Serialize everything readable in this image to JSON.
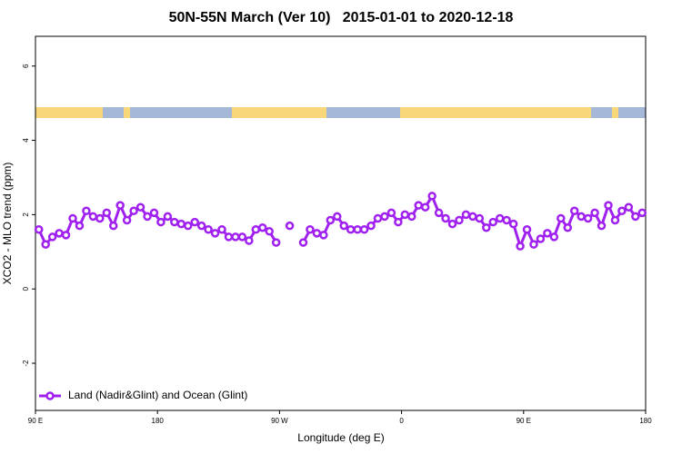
{
  "chart_data": {
    "type": "line",
    "title": "50N-55N March (Ver 10)   2015-01-01 to 2020-12-18",
    "x_label": "Longitude (deg E)",
    "y_label": "XCO2 - MLO trend (ppm)",
    "xlim": [
      90,
      540
    ],
    "ylim": [
      -3.27,
      6.8
    ],
    "xticks": [
      {
        "value": 90,
        "label": "90 E"
      },
      {
        "value": 180,
        "label": "180"
      },
      {
        "value": 270,
        "label": "90 W"
      },
      {
        "value": 360,
        "label": "0"
      },
      {
        "value": 450,
        "label": "90 E"
      },
      {
        "value": 540,
        "label": "180"
      }
    ],
    "yticks": [
      -2,
      0,
      2,
      4,
      6
    ],
    "legend": "bottom-left",
    "x": [
      92.5,
      97.5,
      102.5,
      107.5,
      112.5,
      117.5,
      122.5,
      127.5,
      132.5,
      137.5,
      142.5,
      147.5,
      152.5,
      157.5,
      162.5,
      167.5,
      172.5,
      177.5,
      182.5,
      187.5,
      192.5,
      197.5,
      202.5,
      207.5,
      212.5,
      217.5,
      222.5,
      227.5,
      232.5,
      237.5,
      242.5,
      247.5,
      252.5,
      257.5,
      262.5,
      267.5,
      272.5,
      277.5,
      282.5,
      287.5,
      292.5,
      297.5,
      302.5,
      307.5,
      312.5,
      317.5,
      322.5,
      327.5,
      332.5,
      337.5,
      342.5,
      347.5,
      352.5,
      357.5,
      362.5,
      367.5,
      372.5,
      377.5,
      382.5,
      387.5,
      392.5,
      397.5,
      402.5,
      407.5,
      412.5,
      417.5,
      422.5,
      427.5,
      432.5,
      437.5,
      442.5,
      447.5,
      452.5,
      457.5,
      462.5,
      467.5,
      472.5,
      477.5,
      482.5,
      487.5,
      492.5,
      497.5,
      502.5,
      507.5,
      512.5,
      517.5,
      522.5,
      527.5,
      532.5,
      537.5
    ],
    "series": [
      {
        "name": "Land (Nadir&Glint) and Ocean (Glint)",
        "color": "#a020f0",
        "values": [
          1.6,
          1.2,
          1.4,
          1.5,
          1.45,
          1.9,
          1.7,
          2.1,
          1.95,
          1.9,
          2.05,
          1.7,
          2.25,
          1.85,
          2.1,
          2.2,
          1.95,
          2.05,
          1.8,
          1.95,
          1.8,
          1.75,
          1.7,
          1.8,
          1.7,
          1.6,
          1.5,
          1.6,
          1.4,
          1.4,
          1.4,
          1.3,
          1.6,
          1.65,
          1.55,
          1.25,
          null,
          1.7,
          null,
          1.25,
          1.6,
          1.5,
          1.45,
          1.85,
          1.95,
          1.7,
          1.6,
          1.6,
          1.6,
          1.7,
          1.9,
          1.95,
          2.05,
          1.8,
          2.0,
          1.95,
          2.25,
          2.2,
          2.5,
          2.05,
          1.9,
          1.75,
          1.85,
          2.0,
          1.95,
          1.9,
          1.65,
          1.8,
          1.9,
          1.85,
          1.75,
          1.15,
          1.6,
          1.2,
          1.35,
          1.5,
          1.4,
          1.9,
          1.65,
          2.1,
          1.95,
          1.9,
          2.05,
          1.7,
          2.25,
          1.85,
          2.1,
          2.2,
          1.95,
          2.05
        ]
      }
    ]
  }
}
